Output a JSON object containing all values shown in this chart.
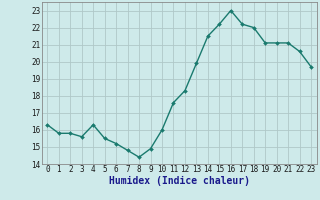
{
  "x": [
    0,
    1,
    2,
    3,
    4,
    5,
    6,
    7,
    8,
    9,
    10,
    11,
    12,
    13,
    14,
    15,
    16,
    17,
    18,
    19,
    20,
    21,
    22,
    23
  ],
  "y": [
    16.3,
    15.8,
    15.8,
    15.6,
    16.3,
    15.5,
    15.2,
    14.8,
    14.4,
    14.9,
    16.0,
    17.6,
    18.3,
    19.9,
    21.5,
    22.2,
    23.0,
    22.2,
    22.0,
    21.1,
    21.1,
    21.1,
    20.6,
    19.7
  ],
  "line_color": "#1a7a6e",
  "marker": "D",
  "marker_size": 2.0,
  "bg_color": "#ceeaea",
  "grid_color": "#b0c8c8",
  "xlabel": "Humidex (Indice chaleur)",
  "xlim": [
    -0.5,
    23.5
  ],
  "ylim": [
    14,
    23.5
  ],
  "yticks": [
    14,
    15,
    16,
    17,
    18,
    19,
    20,
    21,
    22,
    23
  ],
  "xticks": [
    0,
    1,
    2,
    3,
    4,
    5,
    6,
    7,
    8,
    9,
    10,
    11,
    12,
    13,
    14,
    15,
    16,
    17,
    18,
    19,
    20,
    21,
    22,
    23
  ],
  "tick_fontsize": 5.5,
  "xlabel_fontsize": 7.0,
  "line_width": 1.0,
  "spine_color": "#888888",
  "xlabel_color": "#1a1a8c"
}
